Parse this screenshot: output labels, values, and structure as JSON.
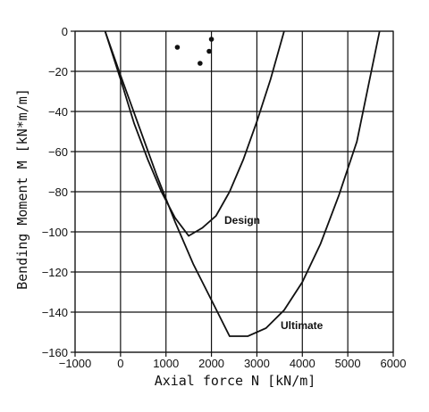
{
  "chart_data": {
    "type": "line",
    "xlabel": "Axial force N [kN/m]",
    "ylabel": "Bending Moment M [kN*m/m]",
    "xlim": [
      -1000,
      6000
    ],
    "ylim": [
      -160,
      0
    ],
    "grid": true,
    "x_ticks": [
      -1000,
      0,
      1000,
      2000,
      3000,
      4000,
      5000,
      6000
    ],
    "y_ticks": [
      0,
      -20,
      -40,
      -60,
      -80,
      -100,
      -120,
      -140,
      -160
    ],
    "x_tick_labels": [
      "−1000",
      "0",
      "1000",
      "2000",
      "3000",
      "4000",
      "5000",
      "6000"
    ],
    "y_tick_labels": [
      "0",
      "−20",
      "−40",
      "−60",
      "−80",
      "−100",
      "−120",
      "−140",
      "−160"
    ],
    "series": [
      {
        "name": "Design",
        "x": [
          -340,
          0,
          300,
          600,
          900,
          1200,
          1500,
          1800,
          2100,
          2400,
          2700,
          3000,
          3300,
          3600
        ],
        "y": [
          0,
          -24,
          -46,
          -64,
          -80,
          -93,
          -102,
          -98,
          -92,
          -80,
          -64,
          -45,
          -24,
          0
        ]
      },
      {
        "name": "Ultimate",
        "x": [
          -340,
          0,
          400,
          800,
          1200,
          1600,
          2000,
          2400,
          2800,
          3200,
          3600,
          4000,
          4400,
          4800,
          5200,
          5700
        ],
        "y": [
          0,
          -22,
          -47,
          -72,
          -95,
          -116,
          -134,
          -152,
          -152,
          -148,
          -139,
          -125,
          -106,
          -82,
          -55,
          0
        ]
      }
    ],
    "scatter_points": {
      "x": [
        1250,
        1750,
        1950,
        2000
      ],
      "y": [
        -8,
        -16,
        -10,
        -4
      ]
    }
  }
}
